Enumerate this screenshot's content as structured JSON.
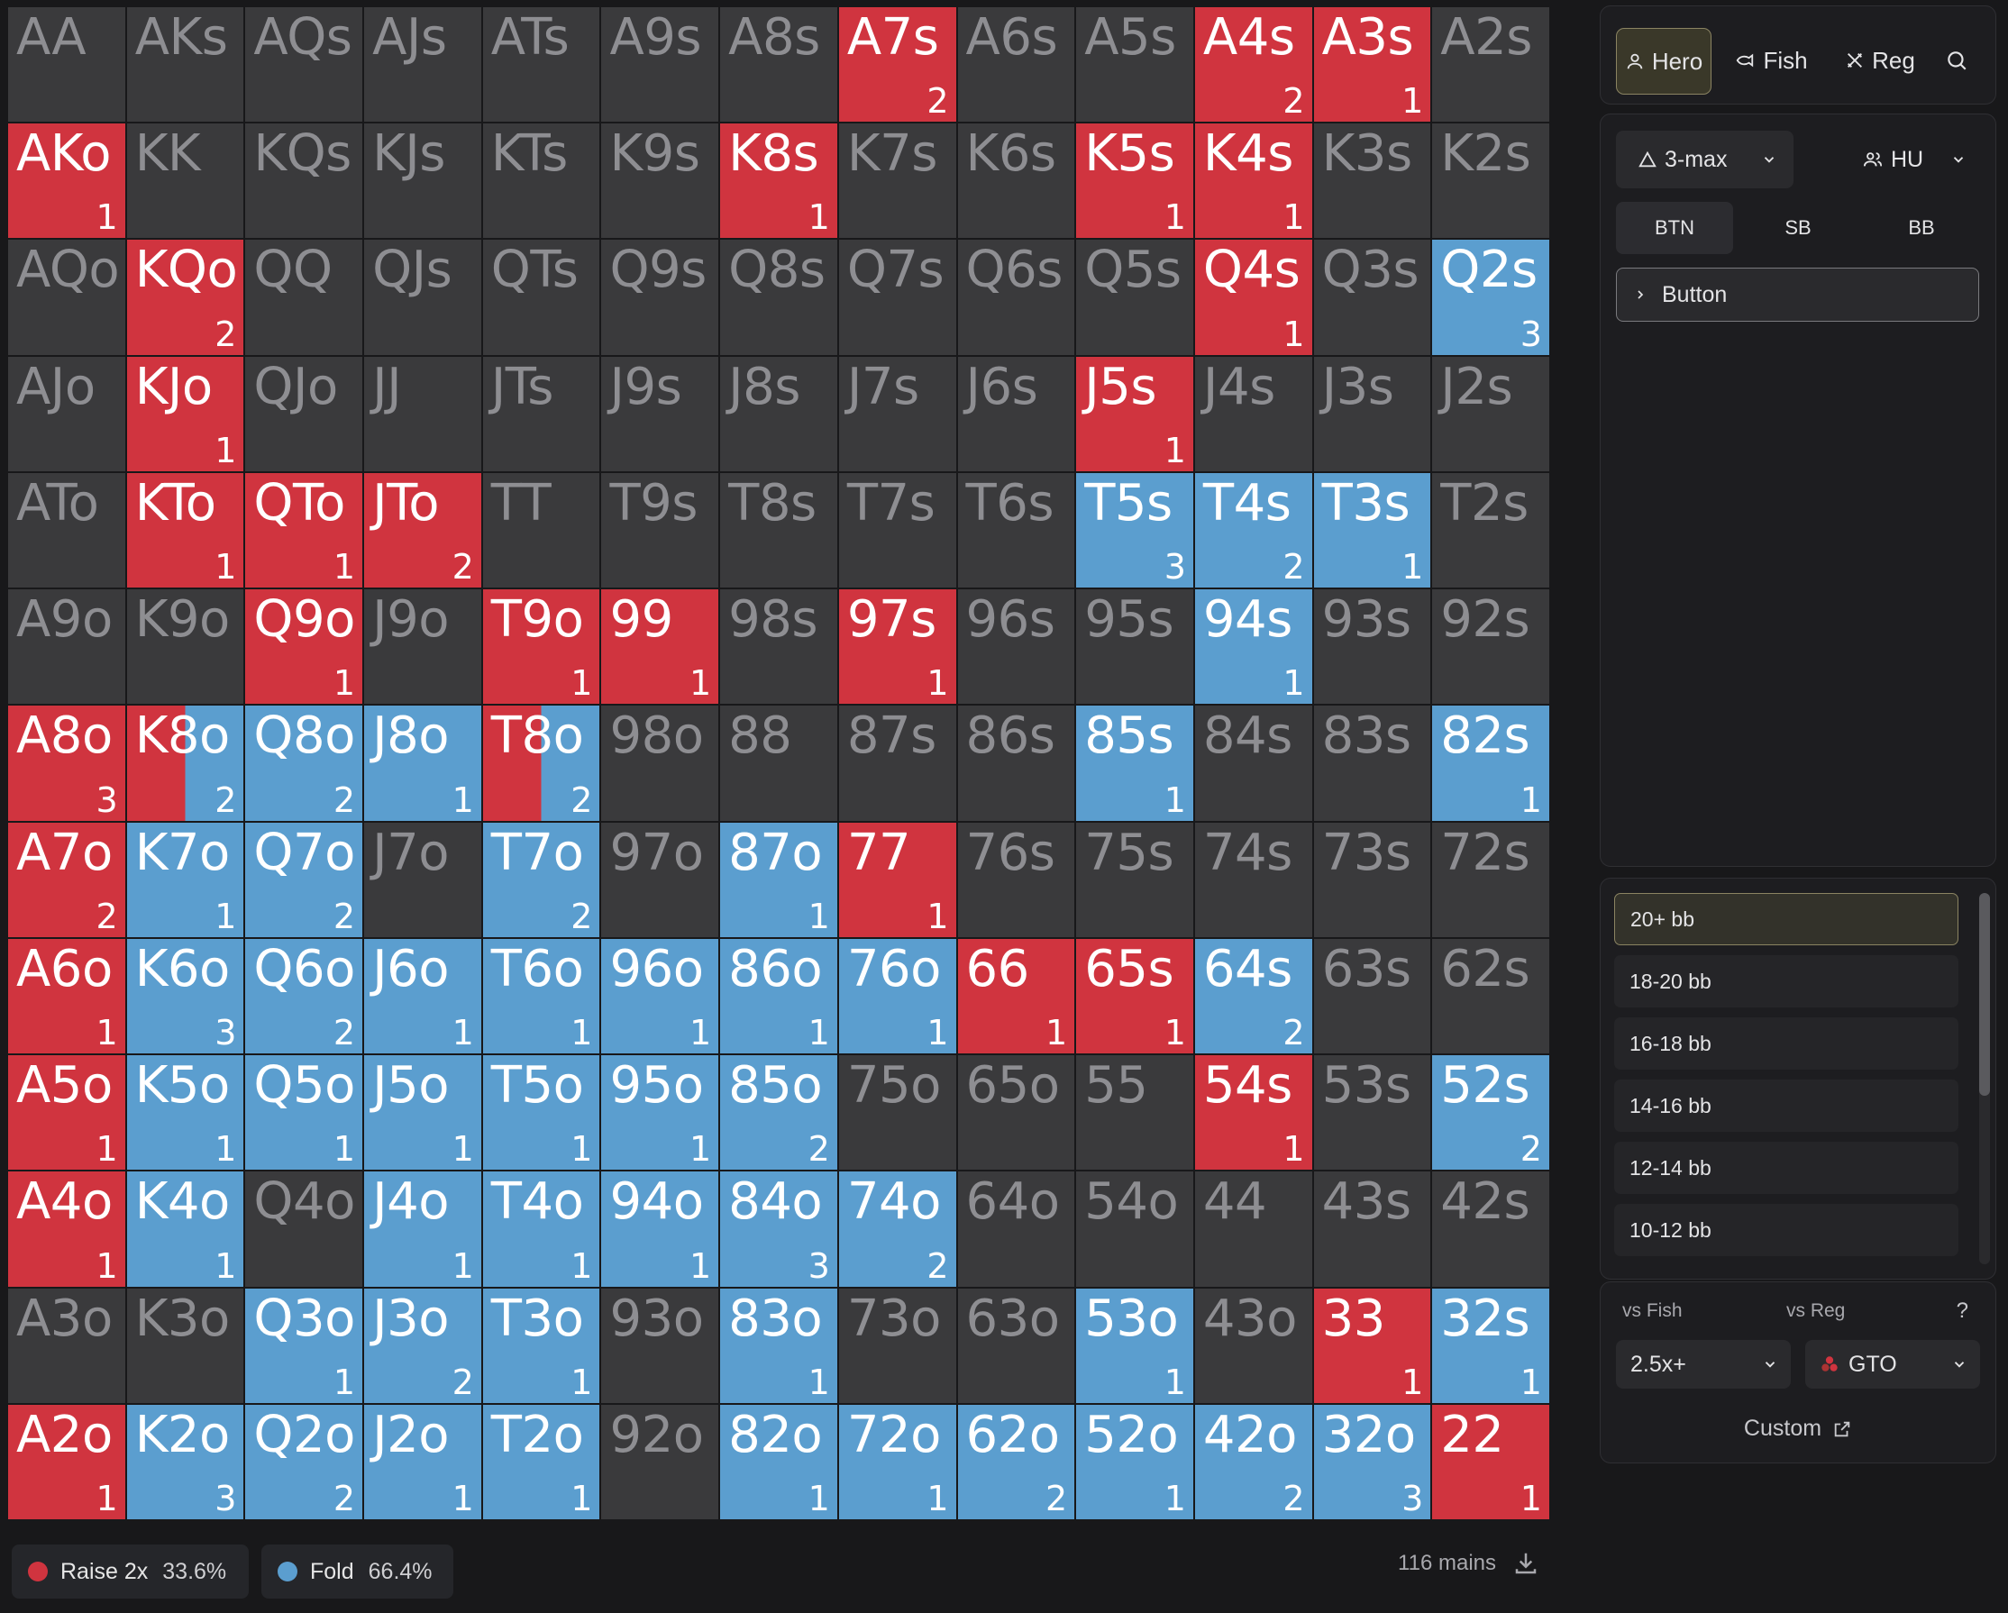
{
  "grid": [
    [
      {
        "t": "AA",
        "s": "n"
      },
      {
        "t": "AKs",
        "s": "n"
      },
      {
        "t": "AQs",
        "s": "n"
      },
      {
        "t": "AJs",
        "s": "n"
      },
      {
        "t": "ATs",
        "s": "n"
      },
      {
        "t": "A9s",
        "s": "n"
      },
      {
        "t": "A8s",
        "s": "n"
      },
      {
        "t": "A7s",
        "s": "r",
        "c": "2"
      },
      {
        "t": "A6s",
        "s": "n"
      },
      {
        "t": "A5s",
        "s": "n"
      },
      {
        "t": "A4s",
        "s": "r",
        "c": "2"
      },
      {
        "t": "A3s",
        "s": "r",
        "c": "1"
      },
      {
        "t": "A2s",
        "s": "n"
      }
    ],
    [
      {
        "t": "AKo",
        "s": "r",
        "c": "1"
      },
      {
        "t": "KK",
        "s": "n"
      },
      {
        "t": "KQs",
        "s": "n"
      },
      {
        "t": "KJs",
        "s": "n"
      },
      {
        "t": "KTs",
        "s": "n"
      },
      {
        "t": "K9s",
        "s": "n"
      },
      {
        "t": "K8s",
        "s": "r",
        "c": "1"
      },
      {
        "t": "K7s",
        "s": "n"
      },
      {
        "t": "K6s",
        "s": "n"
      },
      {
        "t": "K5s",
        "s": "r",
        "c": "1"
      },
      {
        "t": "K4s",
        "s": "r",
        "c": "1"
      },
      {
        "t": "K3s",
        "s": "n"
      },
      {
        "t": "K2s",
        "s": "n"
      }
    ],
    [
      {
        "t": "AQo",
        "s": "n"
      },
      {
        "t": "KQo",
        "s": "r",
        "c": "2"
      },
      {
        "t": "QQ",
        "s": "n"
      },
      {
        "t": "QJs",
        "s": "n"
      },
      {
        "t": "QTs",
        "s": "n"
      },
      {
        "t": "Q9s",
        "s": "n"
      },
      {
        "t": "Q8s",
        "s": "n"
      },
      {
        "t": "Q7s",
        "s": "n"
      },
      {
        "t": "Q6s",
        "s": "n"
      },
      {
        "t": "Q5s",
        "s": "n"
      },
      {
        "t": "Q4s",
        "s": "r",
        "c": "1"
      },
      {
        "t": "Q3s",
        "s": "n"
      },
      {
        "t": "Q2s",
        "s": "f",
        "c": "3"
      }
    ],
    [
      {
        "t": "AJo",
        "s": "n"
      },
      {
        "t": "KJo",
        "s": "r",
        "c": "1"
      },
      {
        "t": "QJo",
        "s": "n"
      },
      {
        "t": "JJ",
        "s": "n"
      },
      {
        "t": "JTs",
        "s": "n"
      },
      {
        "t": "J9s",
        "s": "n"
      },
      {
        "t": "J8s",
        "s": "n"
      },
      {
        "t": "J7s",
        "s": "n"
      },
      {
        "t": "J6s",
        "s": "n"
      },
      {
        "t": "J5s",
        "s": "r",
        "c": "1"
      },
      {
        "t": "J4s",
        "s": "n"
      },
      {
        "t": "J3s",
        "s": "n"
      },
      {
        "t": "J2s",
        "s": "n"
      }
    ],
    [
      {
        "t": "ATo",
        "s": "n"
      },
      {
        "t": "KTo",
        "s": "r",
        "c": "1"
      },
      {
        "t": "QTo",
        "s": "r",
        "c": "1"
      },
      {
        "t": "JTo",
        "s": "r",
        "c": "2"
      },
      {
        "t": "TT",
        "s": "n"
      },
      {
        "t": "T9s",
        "s": "n"
      },
      {
        "t": "T8s",
        "s": "n"
      },
      {
        "t": "T7s",
        "s": "n"
      },
      {
        "t": "T6s",
        "s": "n"
      },
      {
        "t": "T5s",
        "s": "f",
        "c": "3"
      },
      {
        "t": "T4s",
        "s": "f",
        "c": "2"
      },
      {
        "t": "T3s",
        "s": "f",
        "c": "1"
      },
      {
        "t": "T2s",
        "s": "n"
      }
    ],
    [
      {
        "t": "A9o",
        "s": "n"
      },
      {
        "t": "K9o",
        "s": "n"
      },
      {
        "t": "Q9o",
        "s": "r",
        "c": "1"
      },
      {
        "t": "J9o",
        "s": "n"
      },
      {
        "t": "T9o",
        "s": "r",
        "c": "1"
      },
      {
        "t": "99",
        "s": "r",
        "c": "1"
      },
      {
        "t": "98s",
        "s": "n"
      },
      {
        "t": "97s",
        "s": "r",
        "c": "1"
      },
      {
        "t": "96s",
        "s": "n"
      },
      {
        "t": "95s",
        "s": "n"
      },
      {
        "t": "94s",
        "s": "f",
        "c": "1"
      },
      {
        "t": "93s",
        "s": "n"
      },
      {
        "t": "92s",
        "s": "n"
      }
    ],
    [
      {
        "t": "A8o",
        "s": "r",
        "c": "3"
      },
      {
        "t": "K8o",
        "s": "m",
        "c": "2",
        "rf": 0.5
      },
      {
        "t": "Q8o",
        "s": "f",
        "c": "2"
      },
      {
        "t": "J8o",
        "s": "f",
        "c": "1"
      },
      {
        "t": "T8o",
        "s": "m",
        "c": "2",
        "rf": 0.5
      },
      {
        "t": "98o",
        "s": "n"
      },
      {
        "t": "88",
        "s": "n"
      },
      {
        "t": "87s",
        "s": "n"
      },
      {
        "t": "86s",
        "s": "n"
      },
      {
        "t": "85s",
        "s": "f",
        "c": "1"
      },
      {
        "t": "84s",
        "s": "n"
      },
      {
        "t": "83s",
        "s": "n"
      },
      {
        "t": "82s",
        "s": "f",
        "c": "1"
      }
    ],
    [
      {
        "t": "A7o",
        "s": "r",
        "c": "2"
      },
      {
        "t": "K7o",
        "s": "f",
        "c": "1"
      },
      {
        "t": "Q7o",
        "s": "f",
        "c": "2"
      },
      {
        "t": "J7o",
        "s": "n"
      },
      {
        "t": "T7o",
        "s": "f",
        "c": "2"
      },
      {
        "t": "97o",
        "s": "n"
      },
      {
        "t": "87o",
        "s": "f",
        "c": "1"
      },
      {
        "t": "77",
        "s": "r",
        "c": "1"
      },
      {
        "t": "76s",
        "s": "n"
      },
      {
        "t": "75s",
        "s": "n"
      },
      {
        "t": "74s",
        "s": "n"
      },
      {
        "t": "73s",
        "s": "n"
      },
      {
        "t": "72s",
        "s": "n"
      }
    ],
    [
      {
        "t": "A6o",
        "s": "r",
        "c": "1"
      },
      {
        "t": "K6o",
        "s": "f",
        "c": "3"
      },
      {
        "t": "Q6o",
        "s": "f",
        "c": "2"
      },
      {
        "t": "J6o",
        "s": "f",
        "c": "1"
      },
      {
        "t": "T6o",
        "s": "f",
        "c": "1"
      },
      {
        "t": "96o",
        "s": "f",
        "c": "1"
      },
      {
        "t": "86o",
        "s": "f",
        "c": "1"
      },
      {
        "t": "76o",
        "s": "f",
        "c": "1"
      },
      {
        "t": "66",
        "s": "r",
        "c": "1"
      },
      {
        "t": "65s",
        "s": "r",
        "c": "1"
      },
      {
        "t": "64s",
        "s": "f",
        "c": "2"
      },
      {
        "t": "63s",
        "s": "n"
      },
      {
        "t": "62s",
        "s": "n"
      }
    ],
    [
      {
        "t": "A5o",
        "s": "r",
        "c": "1"
      },
      {
        "t": "K5o",
        "s": "f",
        "c": "1"
      },
      {
        "t": "Q5o",
        "s": "f",
        "c": "1"
      },
      {
        "t": "J5o",
        "s": "f",
        "c": "1"
      },
      {
        "t": "T5o",
        "s": "f",
        "c": "1"
      },
      {
        "t": "95o",
        "s": "f",
        "c": "1"
      },
      {
        "t": "85o",
        "s": "f",
        "c": "2"
      },
      {
        "t": "75o",
        "s": "n"
      },
      {
        "t": "65o",
        "s": "n"
      },
      {
        "t": "55",
        "s": "n"
      },
      {
        "t": "54s",
        "s": "r",
        "c": "1"
      },
      {
        "t": "53s",
        "s": "n"
      },
      {
        "t": "52s",
        "s": "f",
        "c": "2"
      }
    ],
    [
      {
        "t": "A4o",
        "s": "r",
        "c": "1"
      },
      {
        "t": "K4o",
        "s": "f",
        "c": "1"
      },
      {
        "t": "Q4o",
        "s": "n"
      },
      {
        "t": "J4o",
        "s": "f",
        "c": "1"
      },
      {
        "t": "T4o",
        "s": "f",
        "c": "1"
      },
      {
        "t": "94o",
        "s": "f",
        "c": "1"
      },
      {
        "t": "84o",
        "s": "f",
        "c": "3"
      },
      {
        "t": "74o",
        "s": "f",
        "c": "2"
      },
      {
        "t": "64o",
        "s": "n"
      },
      {
        "t": "54o",
        "s": "n"
      },
      {
        "t": "44",
        "s": "n"
      },
      {
        "t": "43s",
        "s": "n"
      },
      {
        "t": "42s",
        "s": "n"
      }
    ],
    [
      {
        "t": "A3o",
        "s": "n"
      },
      {
        "t": "K3o",
        "s": "n"
      },
      {
        "t": "Q3o",
        "s": "f",
        "c": "1"
      },
      {
        "t": "J3o",
        "s": "f",
        "c": "2"
      },
      {
        "t": "T3o",
        "s": "f",
        "c": "1"
      },
      {
        "t": "93o",
        "s": "n"
      },
      {
        "t": "83o",
        "s": "f",
        "c": "1"
      },
      {
        "t": "73o",
        "s": "n"
      },
      {
        "t": "63o",
        "s": "n"
      },
      {
        "t": "53o",
        "s": "f",
        "c": "1"
      },
      {
        "t": "43o",
        "s": "n"
      },
      {
        "t": "33",
        "s": "r",
        "c": "1"
      },
      {
        "t": "32s",
        "s": "f",
        "c": "1"
      }
    ],
    [
      {
        "t": "A2o",
        "s": "r",
        "c": "1"
      },
      {
        "t": "K2o",
        "s": "f",
        "c": "3"
      },
      {
        "t": "Q2o",
        "s": "f",
        "c": "2"
      },
      {
        "t": "J2o",
        "s": "f",
        "c": "1"
      },
      {
        "t": "T2o",
        "s": "f",
        "c": "1"
      },
      {
        "t": "92o",
        "s": "n"
      },
      {
        "t": "82o",
        "s": "f",
        "c": "1"
      },
      {
        "t": "72o",
        "s": "f",
        "c": "1"
      },
      {
        "t": "62o",
        "s": "f",
        "c": "2"
      },
      {
        "t": "52o",
        "s": "f",
        "c": "1"
      },
      {
        "t": "42o",
        "s": "f",
        "c": "2"
      },
      {
        "t": "32o",
        "s": "f",
        "c": "3"
      },
      {
        "t": "22",
        "s": "r",
        "c": "1"
      }
    ]
  ],
  "colors": {
    "raise": "#d0343f",
    "fold": "#5b9ecf",
    "neutral": "#3a3a3c"
  },
  "legend": {
    "raise": {
      "label": "Raise 2x",
      "pct": "33.6%"
    },
    "fold": {
      "label": "Fold",
      "pct": "66.4%"
    }
  },
  "footer": {
    "mains": "116 mains"
  },
  "tabs": [
    {
      "label": "Hero",
      "icon": "user-icon"
    },
    {
      "label": "Fish",
      "icon": "fish-icon"
    },
    {
      "label": "Reg",
      "icon": "swords-icon"
    }
  ],
  "table": {
    "format": "3-max",
    "mode": "HU",
    "positions": [
      "BTN",
      "SB",
      "BB"
    ],
    "active_position": "BTN",
    "action": "Button"
  },
  "stacks": [
    "20+ bb",
    "18-20 bb",
    "16-18 bb",
    "14-16 bb",
    "12-14 bb",
    "10-12 bb"
  ],
  "opponents": {
    "vs_fish_label": "vs Fish",
    "vs_reg_label": "vs Reg",
    "help": "?",
    "fish_value": "2.5x+",
    "reg_value": "GTO",
    "custom_label": "Custom"
  }
}
